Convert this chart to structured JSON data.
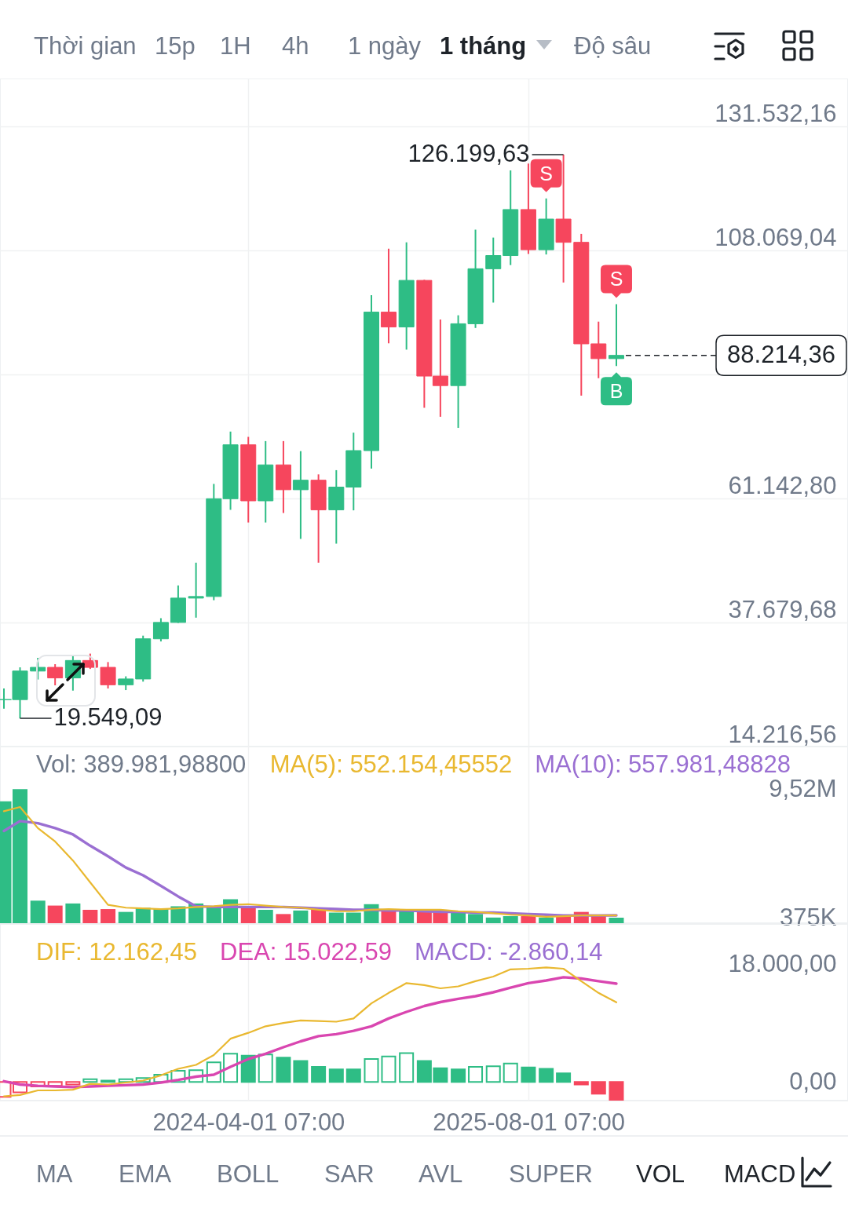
{
  "chart_data": [
    {
      "type": "other",
      "annotations": [
        "Thời gian",
        "15p",
        "1H",
        "4h",
        "1 ngày",
        "1 tháng",
        "Độ sâu"
      ]
    },
    {
      "type": "candlestick",
      "x": [
        "2023-02",
        "2023-03",
        "2023-04",
        "2023-05",
        "2023-06",
        "2023-07",
        "2023-08",
        "2023-09",
        "2023-10",
        "2023-11",
        "2023-12",
        "2024-01",
        "2024-02",
        "2024-03",
        "2024-04",
        "2024-05",
        "2024-06",
        "2024-07",
        "2024-08",
        "2024-09",
        "2024-10",
        "2024-11",
        "2024-12",
        "2025-01",
        "2025-02",
        "2025-03",
        "2025-04",
        "2025-05",
        "2025-06",
        "2025-07",
        "2025-08",
        "2025-09",
        "2025-10",
        "2025-11",
        "2025-12",
        "2026-01"
      ],
      "ohlc": [
        [
          23100,
          25200,
          21400,
          23100
        ],
        [
          23100,
          29200,
          19549.09,
          28500
        ],
        [
          28500,
          31000,
          26900,
          29200
        ],
        [
          29200,
          29800,
          25800,
          27200
        ],
        [
          27200,
          31400,
          24800,
          30500
        ],
        [
          30500,
          31800,
          28900,
          29200
        ],
        [
          29200,
          30200,
          25200,
          25900
        ],
        [
          25900,
          27500,
          24900,
          27000
        ],
        [
          27000,
          35200,
          26500,
          34600
        ],
        [
          34600,
          38500,
          34100,
          37700
        ],
        [
          37700,
          44700,
          37600,
          42300
        ],
        [
          42300,
          49000,
          38600,
          42600
        ],
        [
          42600,
          63900,
          41900,
          61100
        ],
        [
          61100,
          73800,
          59000,
          71300
        ],
        [
          71300,
          72800,
          56600,
          60700
        ],
        [
          60700,
          72000,
          56600,
          67500
        ],
        [
          67500,
          72000,
          58400,
          62800
        ],
        [
          62800,
          70100,
          53500,
          64600
        ],
        [
          64600,
          65700,
          49000,
          59000
        ],
        [
          59000,
          66500,
          52600,
          63300
        ],
        [
          63300,
          73600,
          58900,
          70200
        ],
        [
          70200,
          99600,
          66800,
          96400
        ],
        [
          96400,
          108400,
          90500,
          93600
        ],
        [
          93600,
          109600,
          89300,
          102400
        ],
        [
          102400,
          102500,
          78300,
          84300
        ],
        [
          84300,
          95000,
          76600,
          82500
        ],
        [
          82500,
          95800,
          74500,
          94200
        ],
        [
          94200,
          112000,
          93400,
          104600
        ],
        [
          104600,
          110500,
          98200,
          107100
        ],
        [
          107100,
          123200,
          105300,
          115800
        ],
        [
          115800,
          124500,
          107400,
          108200
        ],
        [
          108200,
          117900,
          107300,
          114000
        ],
        [
          114000,
          126199.63,
          102000,
          109600
        ],
        [
          109600,
          111200,
          80600,
          90400
        ],
        [
          90400,
          94600,
          83900,
          87600
        ],
        [
          87600,
          97900,
          86200,
          88214.36
        ]
      ],
      "colors": [
        "#2ebd85",
        "#2ebd85",
        "#2ebd85",
        "#f6465d",
        "#2ebd85",
        "#f6465d",
        "#f6465d",
        "#2ebd85",
        "#2ebd85",
        "#2ebd85",
        "#2ebd85",
        "#2ebd85",
        "#2ebd85",
        "#2ebd85",
        "#f6465d",
        "#2ebd85",
        "#f6465d",
        "#2ebd85",
        "#f6465d",
        "#2ebd85",
        "#2ebd85",
        "#2ebd85",
        "#f6465d",
        "#2ebd85",
        "#f6465d",
        "#f6465d",
        "#2ebd85",
        "#2ebd85",
        "#2ebd85",
        "#2ebd85",
        "#f6465d",
        "#2ebd85",
        "#f6465d",
        "#f6465d",
        "#f6465d",
        "#2ebd85"
      ],
      "xlim": [
        "2023-02-01",
        "2027-02-01"
      ],
      "xticks": [
        "2024-04-01T07:00",
        "2025-08-01T07:00"
      ],
      "ylim": [
        14216.56,
        140590
      ],
      "yticks": [
        {
          "value": 14216.56,
          "label": "14.216,56"
        },
        {
          "value": 37679.68,
          "label": "37.679,68"
        },
        {
          "value": 61142.8,
          "label": "61.142,80"
        },
        {
          "value": 84605.92,
          "label": null
        },
        {
          "value": 108069.04,
          "label": "108.069,04"
        },
        {
          "value": 131532.16,
          "label": "131.532,16"
        }
      ],
      "grid": true,
      "tick_labels": "y",
      "ref_lines": [
        {
          "axis": "y",
          "value": 88214.36,
          "label": "88.214,36",
          "line_style": "dashed",
          "color": "#1e2329"
        }
      ],
      "annotations": [
        {
          "text": "126.199,63",
          "x": "2025-10",
          "y": 126199.63
        },
        {
          "text": "19.549,09",
          "x": "2023-03",
          "y": 19549.09
        },
        {
          "text": "S",
          "x": "2025-09",
          "y": 117900
        },
        {
          "text": "S",
          "x": "2026-01",
          "y": 97900
        },
        {
          "text": "B",
          "x": "2026-01",
          "y": 86200
        }
      ]
    },
    {
      "type": "bar",
      "title": "Vol: 389.981,98800",
      "x": [
        "2023-02",
        "2023-03",
        "2023-04",
        "2023-05",
        "2023-06",
        "2023-07",
        "2023-08",
        "2023-09",
        "2023-10",
        "2023-11",
        "2023-12",
        "2024-01",
        "2024-02",
        "2024-03",
        "2024-04",
        "2024-05",
        "2024-06",
        "2024-07",
        "2024-08",
        "2024-09",
        "2024-10",
        "2024-11",
        "2024-12",
        "2025-01",
        "2025-02",
        "2025-03",
        "2025-04",
        "2025-05",
        "2025-06",
        "2025-07",
        "2025-08",
        "2025-09",
        "2025-10",
        "2025-11",
        "2025-12",
        "2026-01"
      ],
      "series": [
        {
          "type": "bar",
          "values": [
            8650000,
            9520000,
            1600000,
            1250000,
            1400000,
            950000,
            1000000,
            800000,
            1100000,
            1050000,
            1200000,
            1400000,
            1150000,
            1700000,
            1150000,
            950000,
            650000,
            900000,
            1000000,
            750000,
            750000,
            1350000,
            950000,
            850000,
            900000,
            950000,
            800000,
            650000,
            400000,
            500000,
            500000,
            400000,
            550000,
            800000,
            500000,
            389981.988
          ],
          "colors": [
            "#2ebd85",
            "#2ebd85",
            "#2ebd85",
            "#f6465d",
            "#2ebd85",
            "#f6465d",
            "#f6465d",
            "#2ebd85",
            "#2ebd85",
            "#2ebd85",
            "#2ebd85",
            "#2ebd85",
            "#2ebd85",
            "#2ebd85",
            "#f6465d",
            "#2ebd85",
            "#f6465d",
            "#2ebd85",
            "#f6465d",
            "#2ebd85",
            "#2ebd85",
            "#2ebd85",
            "#f6465d",
            "#2ebd85",
            "#f6465d",
            "#f6465d",
            "#2ebd85",
            "#2ebd85",
            "#2ebd85",
            "#2ebd85",
            "#f6465d",
            "#2ebd85",
            "#f6465d",
            "#f6465d",
            "#f6465d",
            "#2ebd85"
          ]
        },
        {
          "type": "line",
          "name": "MA(5): 552.154,45552",
          "color": "#e9b830",
          "values": [
            7950000,
            8250000,
            6750000,
            5800000,
            4450000,
            2900000,
            1300000,
            1100000,
            1050000,
            1000000,
            1050000,
            1150000,
            1200000,
            1300000,
            1350000,
            1250000,
            1150000,
            1100000,
            950000,
            850000,
            850000,
            950000,
            1000000,
            950000,
            950000,
            950000,
            850000,
            800000,
            700000,
            600000,
            550000,
            450000,
            500000,
            550000,
            550000,
            552154.45552
          ]
        },
        {
          "type": "line",
          "name": "MA(10): 557.981,48828",
          "color": "#9a6fd2",
          "values": [
            6550000,
            7250000,
            7100000,
            6750000,
            6300000,
            5500000,
            4750000,
            3950000,
            3400000,
            2650000,
            1900000,
            1200000,
            1150000,
            1150000,
            1150000,
            1150000,
            1150000,
            1100000,
            1050000,
            1000000,
            950000,
            950000,
            900000,
            900000,
            850000,
            800000,
            800000,
            750000,
            750000,
            700000,
            650000,
            600000,
            550000,
            550000,
            550000,
            557981.48828
          ]
        }
      ],
      "xlim": [
        "2023-02-01",
        "2027-02-01"
      ],
      "xticks": [
        "2024-04-01T07:00",
        "2025-08-01T07:00"
      ],
      "ylim": [
        0,
        12540000
      ],
      "yticks": [
        {
          "value": 375000,
          "label": "375K"
        },
        {
          "value": 9520000,
          "label": "9,52M"
        }
      ],
      "grid": "x",
      "tick_labels": "y",
      "legend": "top right"
    },
    {
      "type": "bar",
      "x": [
        "2023-02",
        "2023-03",
        "2023-04",
        "2023-05",
        "2023-06",
        "2023-07",
        "2023-08",
        "2023-09",
        "2023-10",
        "2023-11",
        "2023-12",
        "2024-01",
        "2024-02",
        "2024-03",
        "2024-04",
        "2024-05",
        "2024-06",
        "2024-07",
        "2024-08",
        "2024-09",
        "2024-10",
        "2024-11",
        "2024-12",
        "2025-01",
        "2025-02",
        "2025-03",
        "2025-04",
        "2025-05",
        "2025-06",
        "2025-07",
        "2025-08",
        "2025-09",
        "2025-10",
        "2025-11",
        "2025-12",
        "2026-01"
      ],
      "series": [
        {
          "type": "bar",
          "values": [
            -2300,
            -1600,
            -700,
            -600,
            -400,
            400,
            200,
            400,
            600,
            1100,
            1700,
            1800,
            3000,
            4300,
            4000,
            4200,
            3700,
            3200,
            2300,
            1900,
            1900,
            3500,
            3900,
            4400,
            3200,
            2100,
            1900,
            2300,
            2400,
            2800,
            2200,
            2000,
            1300,
            -400,
            -1800,
            -2860.14
          ],
          "colors": [
            "#f6465d",
            "#f6465d",
            "#f6465d",
            "#f6465d",
            "#f6465d",
            "#2ebd85",
            "#2ebd85",
            "#2ebd85",
            "#2ebd85",
            "#2ebd85",
            "#2ebd85",
            "#2ebd85",
            "#2ebd85",
            "#2ebd85",
            "#2ebd85",
            "#2ebd85",
            "#2ebd85",
            "#2ebd85",
            "#2ebd85",
            "#2ebd85",
            "#2ebd85",
            "#2ebd85",
            "#2ebd85",
            "#2ebd85",
            "#2ebd85",
            "#2ebd85",
            "#2ebd85",
            "#2ebd85",
            "#2ebd85",
            "#2ebd85",
            "#2ebd85",
            "#2ebd85",
            "#2ebd85",
            "#f6465d",
            "#f6465d",
            "#f6465d"
          ]
        },
        {
          "type": "line",
          "name": "DIF: 12.162,45",
          "color": "#e9b830",
          "values": [
            -2200,
            -2000,
            -1300,
            -1300,
            -1200,
            -300,
            -400,
            -100,
            200,
            1000,
            2000,
            2600,
            4100,
            6600,
            7500,
            8500,
            9000,
            9400,
            9300,
            9200,
            9700,
            12000,
            13600,
            15100,
            14800,
            14300,
            14600,
            15400,
            16100,
            17200,
            17300,
            17500,
            17300,
            15400,
            13600,
            12162.45
          ]
        },
        {
          "type": "line",
          "name": "DEA: 15.022,59",
          "color": "#d946b0",
          "values": [
            100,
            -400,
            -600,
            -700,
            -800,
            -700,
            -600,
            -500,
            -400,
            -100,
            300,
            800,
            1100,
            2300,
            3500,
            4300,
            5300,
            6200,
            7000,
            7300,
            7800,
            8500,
            9700,
            10700,
            11600,
            12200,
            12700,
            13100,
            13700,
            14400,
            15100,
            15500,
            16000,
            15800,
            15400,
            15022.59
          ]
        }
      ],
      "xlim": [
        "2023-02-01",
        "2027-02-01"
      ],
      "xticks": [
        {
          "value": "2024-04-01T07:00",
          "label": "2024-04-01 07:00"
        },
        {
          "value": "2025-08-01T07:00",
          "label": "2025-08-01 07:00"
        }
      ],
      "ylim": [
        -2860.14,
        24140
      ],
      "yticks": [
        {
          "value": 0,
          "label": "0,00"
        },
        {
          "value": 18000,
          "label": "18.000,00"
        }
      ],
      "grid": "x",
      "legend": "top left",
      "annotations": [
        "MACD: -2.860,14"
      ]
    },
    {
      "type": "other",
      "annotations": [
        "MA",
        "EMA",
        "BOLL",
        "SAR",
        "AVL",
        "SUPER",
        "VOL",
        "MACD"
      ]
    }
  ]
}
